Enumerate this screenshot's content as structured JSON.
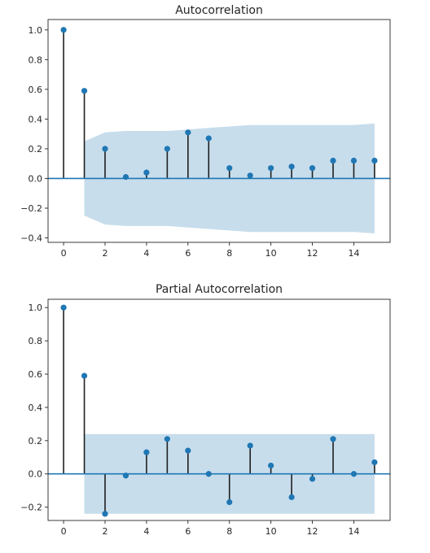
{
  "chart_data": [
    {
      "type": "stem",
      "title": "Autocorrelation",
      "xlabel": "",
      "ylabel": "",
      "x": [
        0,
        1,
        2,
        3,
        4,
        5,
        6,
        7,
        8,
        9,
        10,
        11,
        12,
        13,
        14,
        15
      ],
      "values": [
        1.0,
        0.59,
        0.2,
        0.01,
        0.04,
        0.2,
        0.31,
        0.27,
        0.07,
        0.02,
        0.07,
        0.08,
        0.07,
        0.12,
        0.12,
        0.12
      ],
      "confidence_band": {
        "x": [
          1,
          2,
          3,
          4,
          5,
          6,
          7,
          8,
          9,
          10,
          11,
          12,
          13,
          14,
          15
        ],
        "upper": [
          0.25,
          0.31,
          0.32,
          0.32,
          0.32,
          0.33,
          0.34,
          0.35,
          0.36,
          0.36,
          0.36,
          0.36,
          0.36,
          0.36,
          0.37
        ],
        "lower": [
          -0.25,
          -0.31,
          -0.32,
          -0.32,
          -0.32,
          -0.33,
          -0.34,
          -0.35,
          -0.36,
          -0.36,
          -0.36,
          -0.36,
          -0.36,
          -0.36,
          -0.37
        ]
      },
      "xlim": [
        -0.75,
        15.75
      ],
      "ylim": [
        -0.43,
        1.07
      ],
      "xticks": [
        0,
        2,
        4,
        6,
        8,
        10,
        12,
        14
      ],
      "yticks": [
        -0.4,
        -0.2,
        0.0,
        0.2,
        0.4,
        0.6,
        0.8,
        1.0
      ],
      "grid": false
    },
    {
      "type": "stem",
      "title": "Partial Autocorrelation",
      "xlabel": "",
      "ylabel": "",
      "x": [
        0,
        1,
        2,
        3,
        4,
        5,
        6,
        7,
        8,
        9,
        10,
        11,
        12,
        13,
        14,
        15
      ],
      "values": [
        1.0,
        0.59,
        -0.24,
        -0.01,
        0.13,
        0.21,
        0.14,
        0.0,
        -0.17,
        0.17,
        0.05,
        -0.14,
        -0.03,
        0.21,
        0.0,
        0.07
      ],
      "confidence_band": {
        "x": [
          1,
          15
        ],
        "upper": [
          0.24,
          0.24
        ],
        "lower": [
          -0.24,
          -0.24
        ]
      },
      "xlim": [
        -0.75,
        15.75
      ],
      "ylim": [
        -0.28,
        1.05
      ],
      "xticks": [
        0,
        2,
        4,
        6,
        8,
        10,
        12,
        14
      ],
      "yticks": [
        -0.2,
        0.0,
        0.2,
        0.4,
        0.6,
        0.8,
        1.0
      ],
      "grid": false
    }
  ],
  "style": {
    "marker_color": "#1f77b4",
    "stem_color": "#1f1f1f",
    "baseline_color": "#1f77b4",
    "band_color": "#1f77b4"
  }
}
